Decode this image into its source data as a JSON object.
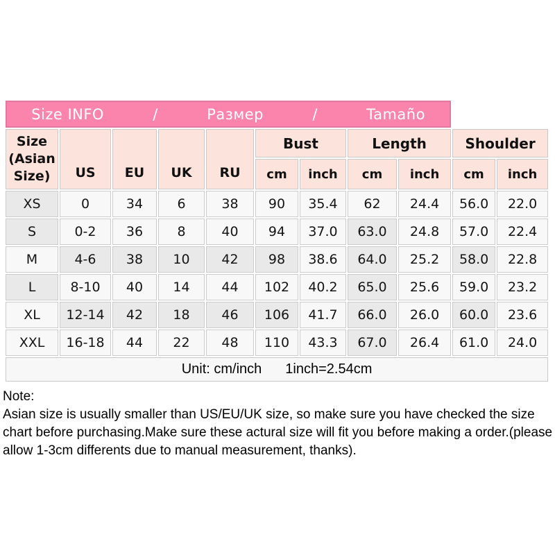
{
  "header": {
    "labels": [
      "Size INFO",
      "/",
      "Размер",
      "/",
      "Tamaño"
    ]
  },
  "columns": {
    "size_label": "Size\n(Asian\nSize)",
    "regions": [
      "US",
      "EU",
      "UK",
      "RU"
    ],
    "groups": [
      {
        "label": "Bust",
        "sub": [
          "cm",
          "inch"
        ]
      },
      {
        "label": "Length",
        "sub": [
          "cm",
          "inch"
        ]
      },
      {
        "label": "Shoulder",
        "sub": [
          "cm",
          "inch"
        ]
      }
    ]
  },
  "rows": [
    {
      "size": "XS",
      "values": [
        "0",
        "34",
        "6",
        "38",
        "90",
        "35.4",
        "62",
        "24.4",
        "56.0",
        "22.0"
      ]
    },
    {
      "size": "S",
      "values": [
        "0-2",
        "36",
        "8",
        "40",
        "94",
        "37.0",
        "63.0",
        "24.8",
        "57.0",
        "22.4"
      ]
    },
    {
      "size": "M",
      "values": [
        "4-6",
        "38",
        "10",
        "42",
        "98",
        "38.6",
        "64.0",
        "25.2",
        "58.0",
        "22.8"
      ]
    },
    {
      "size": "L",
      "values": [
        "8-10",
        "40",
        "14",
        "44",
        "102",
        "40.2",
        "65.0",
        "25.6",
        "59.0",
        "23.2"
      ]
    },
    {
      "size": "XL",
      "values": [
        "12-14",
        "42",
        "18",
        "46",
        "106",
        "41.7",
        "66.0",
        "26.0",
        "60.0",
        "23.6"
      ]
    },
    {
      "size": "XXL",
      "values": [
        "16-18",
        "44",
        "22",
        "48",
        "110",
        "43.3",
        "67.0",
        "26.4",
        "61.0",
        "24.0"
      ]
    }
  ],
  "footer": {
    "unit": "Unit: cm/inch",
    "conversion": "1inch=2.54cm"
  },
  "note": {
    "label": "Note:",
    "text": "Asian size is usually smaller than US/EU/UK size, so make sure you have checked the size chart before purchasing.Make sure these actural size will fit you before making a order.(please allow 1-3cm differents due to manual measurement, thanks)."
  },
  "colors": {
    "band_pink": "#fb84ac",
    "band_border_pink": "#e2779f",
    "header_pale_pink": "#fce4dd",
    "cell_bg": "#f8f8f8",
    "cell_shaded": "#e9e9e9",
    "grid_gray": "#cbcbcb",
    "title_text": "#ffffff"
  }
}
